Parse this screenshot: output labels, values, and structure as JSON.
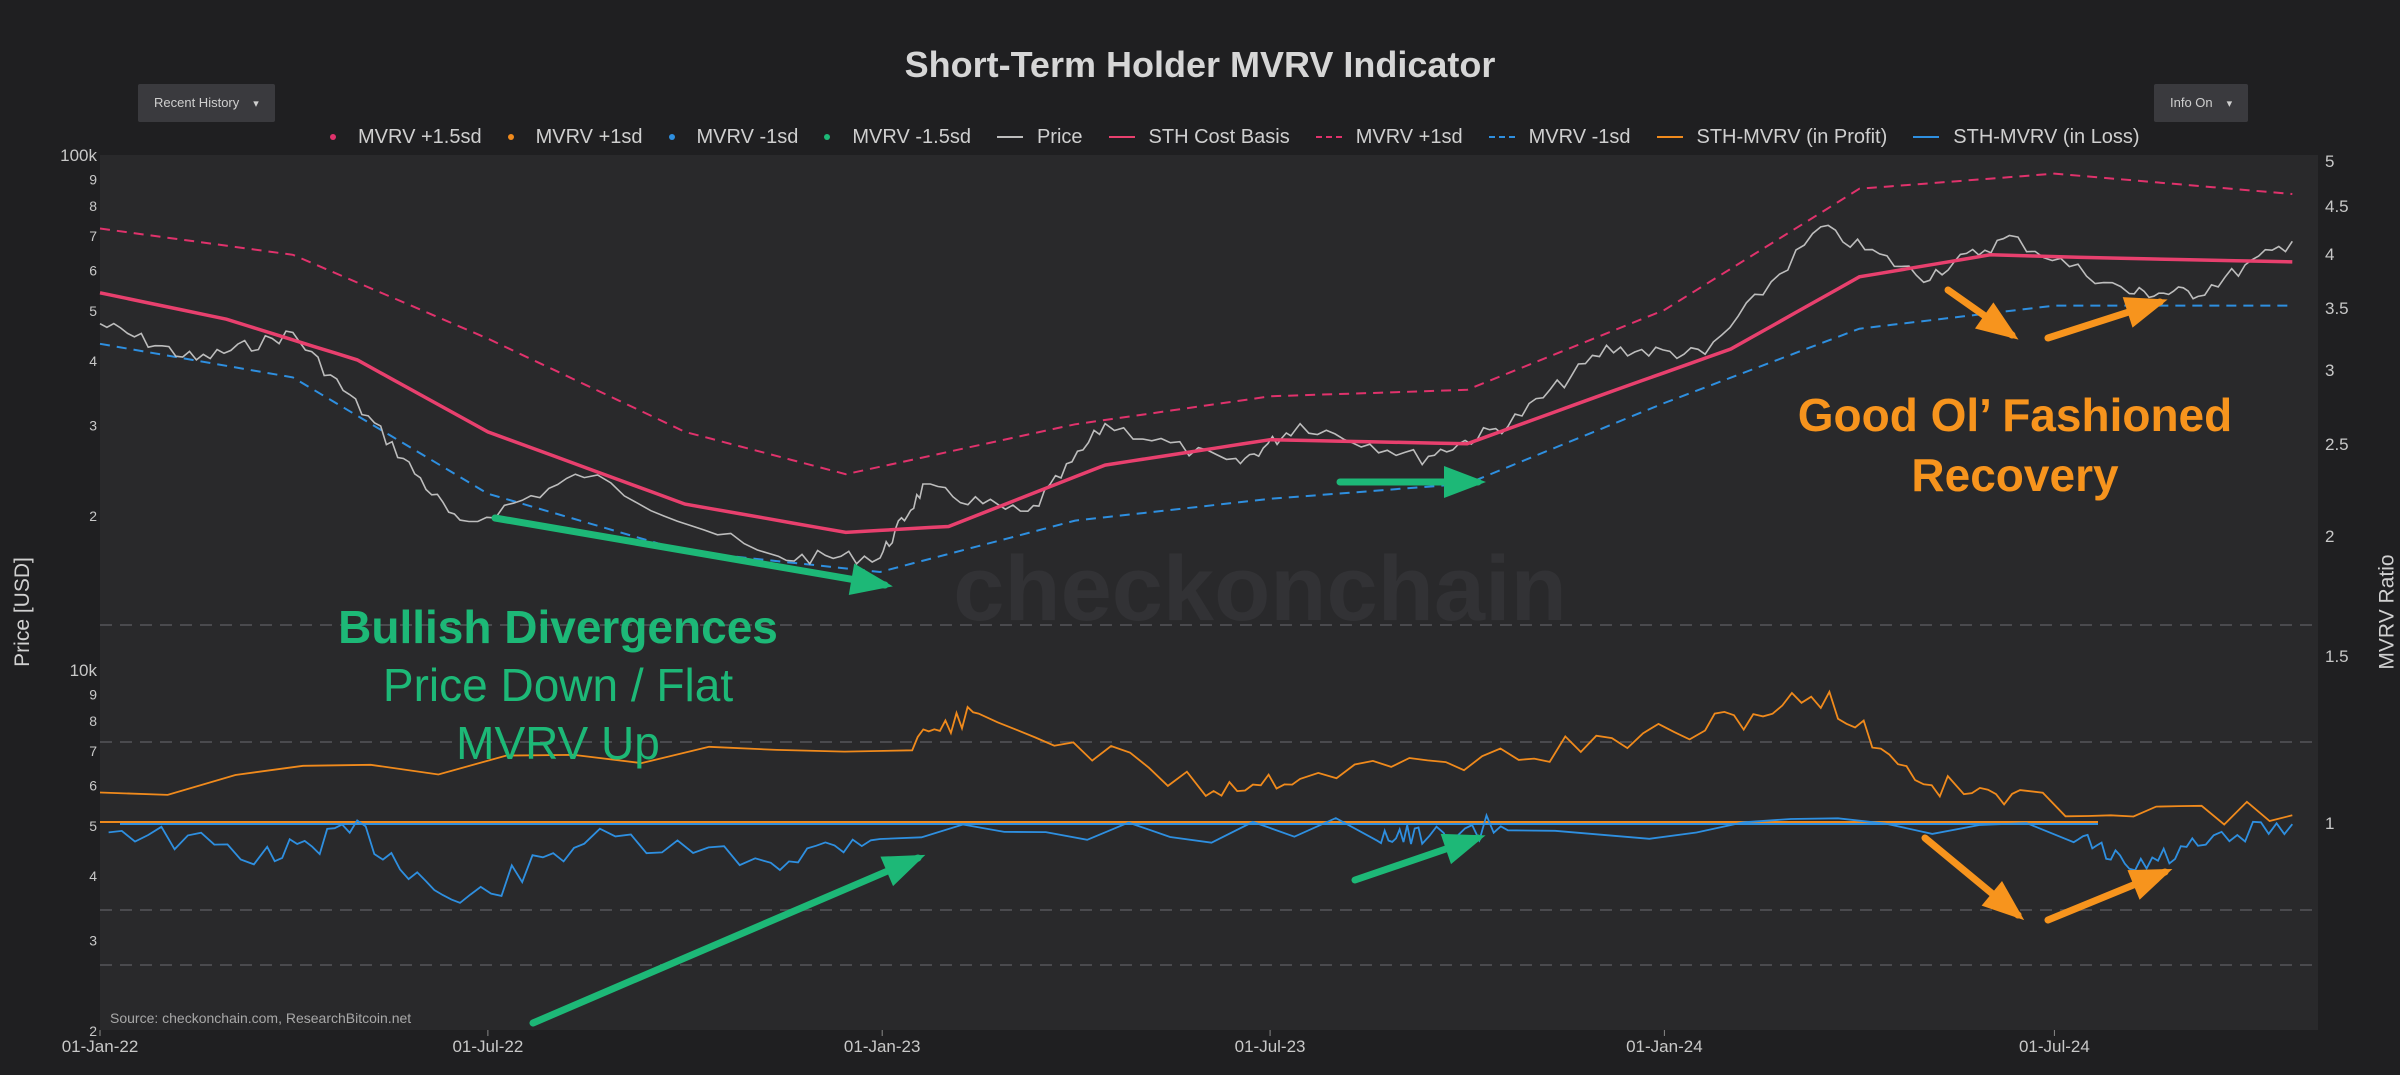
{
  "title": "Short-Term Holder MVRV Indicator",
  "controls": {
    "recent_history": "Recent History",
    "info_on": "Info On",
    "caret": "▾"
  },
  "legend": [
    {
      "label": "MVRV +1.5sd",
      "kind": "dot",
      "color": "#e0326c"
    },
    {
      "label": "MVRV +1sd",
      "kind": "dot",
      "color": "#f08a1c"
    },
    {
      "label": "MVRV -1sd",
      "kind": "dot",
      "color": "#2e8fe0"
    },
    {
      "label": "MVRV -1.5sd",
      "kind": "dot",
      "color": "#1db877"
    },
    {
      "label": "Price",
      "kind": "line",
      "color": "#bdbdbd"
    },
    {
      "label": "STH Cost Basis",
      "kind": "line",
      "color": "#e8406e"
    },
    {
      "label": "MVRV +1sd",
      "kind": "dash",
      "color": "#e0326c"
    },
    {
      "label": "MVRV -1sd",
      "kind": "dash",
      "color": "#2e8fe0"
    },
    {
      "label": "STH-MVRV (in Profit)",
      "kind": "line",
      "color": "#f08a1c"
    },
    {
      "label": "STH-MVRV (in Loss)",
      "kind": "line",
      "color": "#2e8fe0"
    }
  ],
  "axes": {
    "left_label": "Price [USD]",
    "right_label": "MVRV Ratio",
    "left_ticks": [
      "100k",
      "9",
      "8",
      "7",
      "6",
      "5",
      "4",
      "3",
      "2",
      "10k",
      "9",
      "8",
      "7",
      "6",
      "5",
      "4",
      "3",
      "2"
    ],
    "right_ticks": [
      "5",
      "4.5",
      "4",
      "3.5",
      "3",
      "2.5",
      "2",
      "1.5",
      "1"
    ],
    "x_ticks": [
      "01-Jan-22",
      "01-Jul-22",
      "01-Jan-23",
      "01-Jul-23",
      "01-Jan-24",
      "01-Jul-24"
    ]
  },
  "annotations": {
    "bullish_title": "Bullish Divergences",
    "bullish_line1": "Price Down / Flat",
    "bullish_line2": "MVRV Up",
    "recovery_line1": "Good Ol’ Fashioned",
    "recovery_line2": "Recovery",
    "watermark": "checkonchain"
  },
  "source": "Source: checkonchain.com, ResearchBitcoin.net",
  "colors": {
    "background": "#1f1f21",
    "plot": "#29292b",
    "price": "#bdbdbd",
    "cost_basis": "#e8406e",
    "upper_band": "#e0326c",
    "lower_band": "#2e8fe0",
    "mvrv_profit": "#f08a1c",
    "mvrv_loss": "#2e8fe0",
    "green_annotation": "#1db877",
    "orange_annotation": "#f7941d"
  },
  "chart_data": {
    "type": "line",
    "x_start": "2022-01-01",
    "x_end": "2024-11-01",
    "price_axis": {
      "scale": "log",
      "range": [
        2000,
        100000
      ],
      "unit": "USD"
    },
    "mvrv_axis": {
      "range": [
        0.5,
        5
      ]
    },
    "series": [
      {
        "name": "Price",
        "points": [
          [
            "2022-01-01",
            47000
          ],
          [
            "2022-02-15",
            40000
          ],
          [
            "2022-04-01",
            45000
          ],
          [
            "2022-05-12",
            29000
          ],
          [
            "2022-06-18",
            19000
          ],
          [
            "2022-08-15",
            24000
          ],
          [
            "2022-11-10",
            16500
          ],
          [
            "2022-12-31",
            16600
          ],
          [
            "2023-01-20",
            22500
          ],
          [
            "2023-03-10",
            20000
          ],
          [
            "2023-04-15",
            30000
          ],
          [
            "2023-06-15",
            25000
          ],
          [
            "2023-07-15",
            30000
          ],
          [
            "2023-09-10",
            25800
          ],
          [
            "2023-10-20",
            30000
          ],
          [
            "2023-12-05",
            42000
          ],
          [
            "2024-01-20",
            41000
          ],
          [
            "2024-03-14",
            72000
          ],
          [
            "2024-05-01",
            58000
          ],
          [
            "2024-06-10",
            69000
          ],
          [
            "2024-08-05",
            54000
          ],
          [
            "2024-09-06",
            54000
          ],
          [
            "2024-10-20",
            68000
          ]
        ]
      },
      {
        "name": "STH Cost Basis",
        "points": [
          [
            "2022-01-01",
            54000
          ],
          [
            "2022-03-01",
            48000
          ],
          [
            "2022-05-01",
            40000
          ],
          [
            "2022-07-01",
            29000
          ],
          [
            "2022-10-01",
            21000
          ],
          [
            "2022-12-15",
            18500
          ],
          [
            "2023-02-01",
            19000
          ],
          [
            "2023-04-15",
            25000
          ],
          [
            "2023-07-01",
            28000
          ],
          [
            "2023-10-01",
            27500
          ],
          [
            "2023-12-01",
            34000
          ],
          [
            "2024-02-01",
            42000
          ],
          [
            "2024-04-01",
            58000
          ],
          [
            "2024-06-01",
            64000
          ],
          [
            "2024-08-01",
            63000
          ],
          [
            "2024-10-20",
            62000
          ]
        ]
      },
      {
        "name": "MVRV +1sd",
        "points": [
          [
            "2022-01-01",
            72000
          ],
          [
            "2022-04-01",
            64000
          ],
          [
            "2022-07-01",
            44000
          ],
          [
            "2022-10-01",
            29000
          ],
          [
            "2022-12-15",
            24000
          ],
          [
            "2023-04-01",
            30000
          ],
          [
            "2023-07-01",
            34000
          ],
          [
            "2023-10-01",
            35000
          ],
          [
            "2024-01-01",
            50000
          ],
          [
            "2024-04-01",
            86000
          ],
          [
            "2024-07-01",
            92000
          ],
          [
            "2024-10-20",
            84000
          ]
        ]
      },
      {
        "name": "MVRV -1sd",
        "points": [
          [
            "2022-01-01",
            43000
          ],
          [
            "2022-04-01",
            37000
          ],
          [
            "2022-07-01",
            22000
          ],
          [
            "2022-10-01",
            17000
          ],
          [
            "2022-12-31",
            15500
          ],
          [
            "2023-04-01",
            19500
          ],
          [
            "2023-07-01",
            21500
          ],
          [
            "2023-10-01",
            23000
          ],
          [
            "2024-01-01",
            33000
          ],
          [
            "2024-04-01",
            46000
          ],
          [
            "2024-07-01",
            51000
          ],
          [
            "2024-10-20",
            51000
          ]
        ]
      },
      {
        "name": "STH-MVRV (in Profit)",
        "points": [
          [
            "2022-01-01",
            1.1
          ],
          [
            "2023-01-15",
            1.25
          ],
          [
            "2023-02-15",
            1.32
          ],
          [
            "2023-06-01",
            1.1
          ],
          [
            "2023-07-15",
            1.14
          ],
          [
            "2023-10-25",
            1.2
          ],
          [
            "2024-01-20",
            1.28
          ],
          [
            "2024-03-14",
            1.38
          ],
          [
            "2024-05-01",
            1.12
          ],
          [
            "2024-06-15",
            1.06
          ],
          [
            "2024-10-20",
            1.02
          ]
        ]
      },
      {
        "name": "STH-MVRV (in Loss)",
        "points": [
          [
            "2022-01-05",
            0.98
          ],
          [
            "2022-03-20",
            0.84
          ],
          [
            "2022-05-01",
            0.96
          ],
          [
            "2022-06-18",
            0.62
          ],
          [
            "2022-08-15",
            0.92
          ],
          [
            "2022-11-10",
            0.82
          ],
          [
            "2022-12-31",
            0.95
          ],
          [
            "2023-08-20",
            0.96
          ],
          [
            "2023-09-10",
            0.92
          ],
          [
            "2023-10-20",
            0.99
          ],
          [
            "2024-07-10",
            0.94
          ],
          [
            "2024-08-05",
            0.78
          ],
          [
            "2024-09-06",
            0.88
          ],
          [
            "2024-10-20",
            0.99
          ]
        ]
      }
    ],
    "grid": true,
    "legend_placement": "top"
  }
}
